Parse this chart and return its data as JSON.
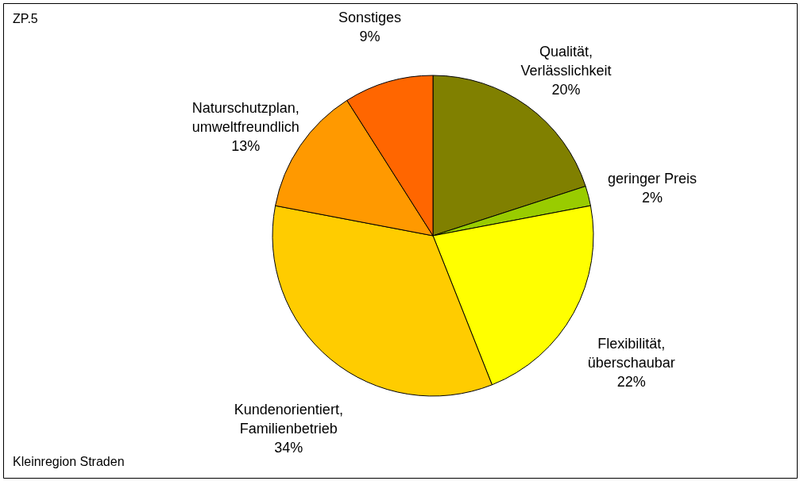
{
  "chart_data": {
    "type": "pie",
    "categories": [
      "Qualität, Verlässlichkeit",
      "geringer Preis",
      "Flexibilität, überschaubar",
      "Kundenorientiert, Familienbetrieb",
      "Naturschutzplan, umweltfreundlich",
      "Sonstiges"
    ],
    "values": [
      20,
      2,
      22,
      34,
      13,
      9
    ],
    "value_labels": [
      "20%",
      "2%",
      "22%",
      "34%",
      "13%",
      "9%"
    ],
    "colors": [
      "#808000",
      "#99cc00",
      "#ffff00",
      "#ffcc00",
      "#ff9900",
      "#ff6600"
    ],
    "annotations": [
      "ZP.5",
      "Kleinregion Straden"
    ]
  }
}
